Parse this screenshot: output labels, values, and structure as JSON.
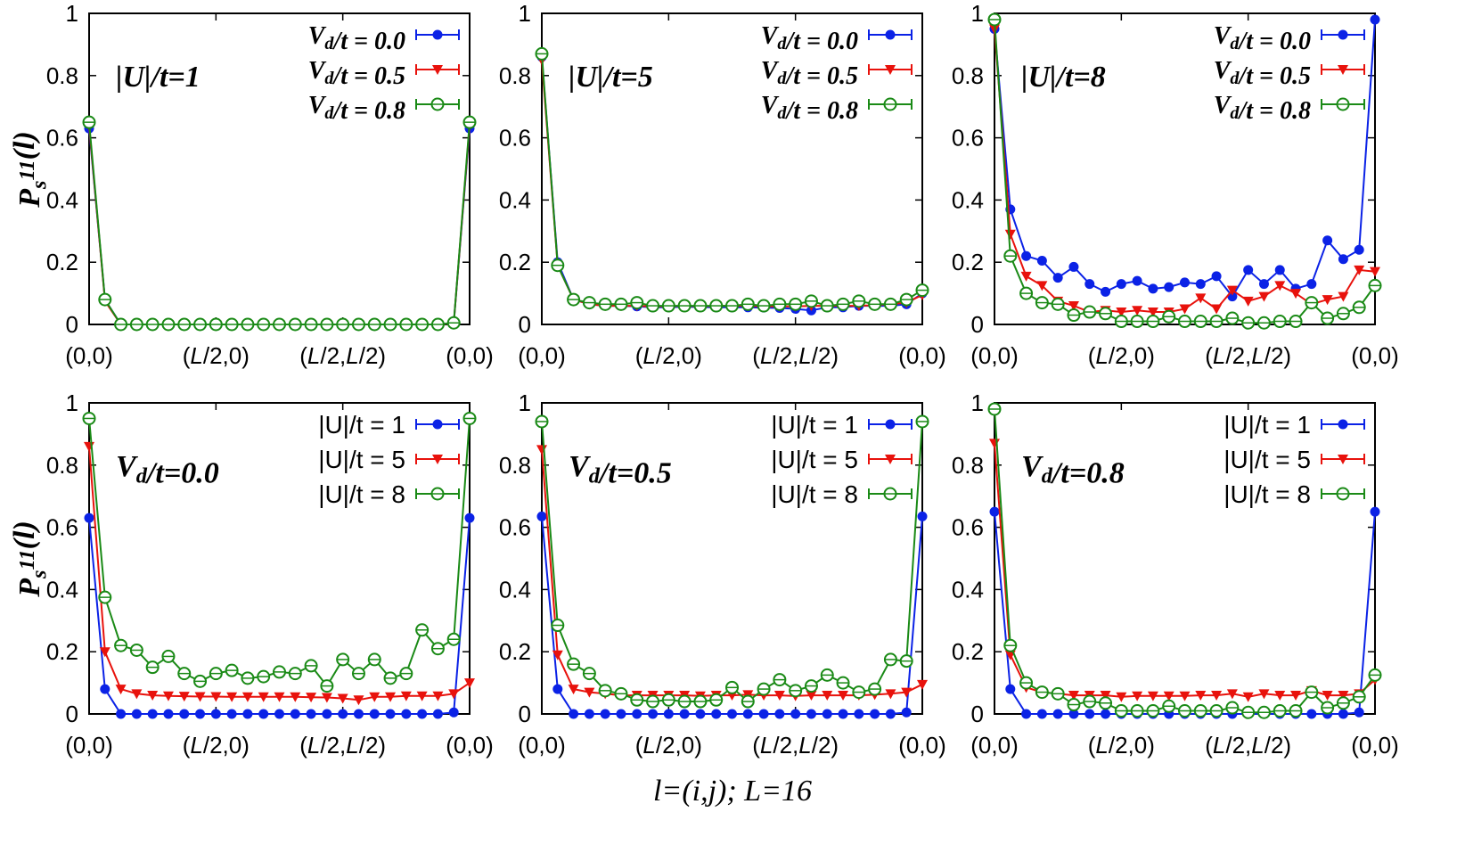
{
  "figure": {
    "xlabel": "l=(i,j); L=16",
    "ylabel": "P_s^11(l)",
    "xtick_labels": [
      "(0,0)",
      "(L/2,0)",
      "(L/2,L/2)",
      "(0,0)"
    ],
    "ytick_labels": [
      "0",
      "0.2",
      "0.4",
      "0.6",
      "0.8",
      "1"
    ]
  },
  "colors": {
    "blue": "#0b22e6",
    "red": "#e8120c",
    "green": "#1a8a16"
  },
  "chart_data": [
    {
      "type": "line",
      "panel_label": "|U|/t=1",
      "ylim": [
        0,
        1
      ],
      "x": [
        0,
        1,
        2,
        3,
        4,
        5,
        6,
        7,
        8,
        9,
        10,
        11,
        12,
        13,
        14,
        15,
        16,
        17,
        18,
        19,
        20,
        21,
        22,
        23,
        24
      ],
      "series": [
        {
          "name": "V_d/t = 0.0",
          "color": "blue",
          "marker": "filled-circle",
          "values": [
            0.63,
            0.08,
            0,
            0,
            0,
            0,
            0,
            0,
            0,
            0,
            0,
            0,
            0,
            0,
            0,
            0,
            0,
            0,
            0,
            0,
            0,
            0,
            0,
            0.005,
            0.63
          ]
        },
        {
          "name": "V_d/t = 0.5",
          "color": "red",
          "marker": "filled-triangle",
          "values": [
            0.64,
            0.075,
            0,
            0,
            0,
            0,
            0,
            0,
            0,
            0,
            0,
            0,
            0,
            0,
            0,
            0,
            0,
            0,
            0,
            0,
            0,
            0,
            0,
            0.004,
            0.64
          ]
        },
        {
          "name": "V_d/t = 0.8",
          "color": "green",
          "marker": "open-circle",
          "values": [
            0.65,
            0.08,
            0,
            0,
            0,
            0,
            0,
            0,
            0,
            0,
            0,
            0,
            0,
            0,
            0,
            0,
            0,
            0,
            0,
            0,
            0,
            0,
            0,
            0.005,
            0.65
          ]
        }
      ]
    },
    {
      "type": "line",
      "panel_label": "|U|/t=5",
      "ylim": [
        0,
        1
      ],
      "x": [
        0,
        1,
        2,
        3,
        4,
        5,
        6,
        7,
        8,
        9,
        10,
        11,
        12,
        13,
        14,
        15,
        16,
        17,
        18,
        19,
        20,
        21,
        22,
        23,
        24
      ],
      "series": [
        {
          "name": "V_d/t = 0.0",
          "color": "blue",
          "marker": "filled-circle",
          "values": [
            0.86,
            0.2,
            0.08,
            0.065,
            0.06,
            0.06,
            0.058,
            0.055,
            0.055,
            0.057,
            0.056,
            0.055,
            0.055,
            0.055,
            0.054,
            0.053,
            0.05,
            0.045,
            0.055,
            0.055,
            0.06,
            0.06,
            0.06,
            0.065,
            0.1
          ]
        },
        {
          "name": "V_d/t = 0.5",
          "color": "red",
          "marker": "filled-triangle",
          "values": [
            0.85,
            0.19,
            0.08,
            0.065,
            0.06,
            0.06,
            0.06,
            0.058,
            0.058,
            0.06,
            0.058,
            0.06,
            0.06,
            0.06,
            0.058,
            0.058,
            0.058,
            0.06,
            0.06,
            0.06,
            0.06,
            0.062,
            0.065,
            0.07,
            0.095
          ]
        },
        {
          "name": "V_d/t = 0.8",
          "color": "green",
          "marker": "open-circle",
          "values": [
            0.87,
            0.19,
            0.08,
            0.07,
            0.065,
            0.065,
            0.07,
            0.06,
            0.06,
            0.06,
            0.06,
            0.06,
            0.06,
            0.065,
            0.06,
            0.065,
            0.065,
            0.075,
            0.06,
            0.065,
            0.075,
            0.065,
            0.065,
            0.08,
            0.11
          ]
        }
      ]
    },
    {
      "type": "line",
      "panel_label": "|U|/t=8",
      "ylim": [
        0,
        1
      ],
      "x": [
        0,
        1,
        2,
        3,
        4,
        5,
        6,
        7,
        8,
        9,
        10,
        11,
        12,
        13,
        14,
        15,
        16,
        17,
        18,
        19,
        20,
        21,
        22,
        23,
        24
      ],
      "series": [
        {
          "name": "V_d/t = 0.0",
          "color": "blue",
          "marker": "filled-circle",
          "values": [
            0.95,
            0.37,
            0.22,
            0.205,
            0.15,
            0.185,
            0.13,
            0.105,
            0.13,
            0.14,
            0.115,
            0.12,
            0.135,
            0.13,
            0.155,
            0.09,
            0.175,
            0.13,
            0.175,
            0.115,
            0.13,
            0.27,
            0.21,
            0.24,
            0.98
          ]
        },
        {
          "name": "V_d/t = 0.5",
          "color": "red",
          "marker": "filled-triangle",
          "values": [
            0.95,
            0.29,
            0.155,
            0.125,
            0.075,
            0.06,
            0.04,
            0.045,
            0.04,
            0.045,
            0.04,
            0.04,
            0.05,
            0.085,
            0.05,
            0.11,
            0.075,
            0.09,
            0.125,
            0.1,
            0.065,
            0.08,
            0.09,
            0.175,
            0.17
          ]
        },
        {
          "name": "V_d/t = 0.8",
          "color": "green",
          "marker": "open-circle",
          "values": [
            0.98,
            0.22,
            0.1,
            0.07,
            0.065,
            0.03,
            0.04,
            0.035,
            0.01,
            0.01,
            0.01,
            0.025,
            0.01,
            0.01,
            0.01,
            0.02,
            0.005,
            0.005,
            0.01,
            0.01,
            0.07,
            0.02,
            0.035,
            0.055,
            0.125
          ]
        }
      ]
    },
    {
      "type": "line",
      "panel_label": "V_d/t=0.0",
      "ylim": [
        0,
        1
      ],
      "x": [
        0,
        1,
        2,
        3,
        4,
        5,
        6,
        7,
        8,
        9,
        10,
        11,
        12,
        13,
        14,
        15,
        16,
        17,
        18,
        19,
        20,
        21,
        22,
        23,
        24
      ],
      "series": [
        {
          "name": "|U|/t = 1",
          "color": "blue",
          "marker": "filled-circle",
          "values": [
            0.63,
            0.08,
            0,
            0,
            0,
            0,
            0,
            0,
            0,
            0,
            0,
            0,
            0,
            0,
            0,
            0,
            0,
            0,
            0,
            0,
            0,
            0,
            0,
            0.005,
            0.63
          ]
        },
        {
          "name": "|U|/t = 5",
          "color": "red",
          "marker": "filled-triangle",
          "values": [
            0.86,
            0.2,
            0.08,
            0.065,
            0.06,
            0.058,
            0.057,
            0.056,
            0.056,
            0.055,
            0.055,
            0.055,
            0.055,
            0.055,
            0.054,
            0.053,
            0.05,
            0.045,
            0.055,
            0.055,
            0.058,
            0.058,
            0.058,
            0.065,
            0.1
          ]
        },
        {
          "name": "|U|/t = 8",
          "color": "green",
          "marker": "open-circle",
          "values": [
            0.95,
            0.375,
            0.22,
            0.205,
            0.15,
            0.185,
            0.13,
            0.105,
            0.13,
            0.14,
            0.115,
            0.12,
            0.135,
            0.13,
            0.155,
            0.09,
            0.175,
            0.13,
            0.175,
            0.115,
            0.13,
            0.27,
            0.21,
            0.24,
            0.95
          ]
        }
      ]
    },
    {
      "type": "line",
      "panel_label": "V_d/t=0.5",
      "ylim": [
        0,
        1
      ],
      "x": [
        0,
        1,
        2,
        3,
        4,
        5,
        6,
        7,
        8,
        9,
        10,
        11,
        12,
        13,
        14,
        15,
        16,
        17,
        18,
        19,
        20,
        21,
        22,
        23,
        24
      ],
      "series": [
        {
          "name": "|U|/t = 1",
          "color": "blue",
          "marker": "filled-circle",
          "values": [
            0.635,
            0.08,
            0,
            0,
            0,
            0,
            0,
            0,
            0,
            0,
            0,
            0,
            0,
            0,
            0,
            0,
            0,
            0,
            0,
            0,
            0,
            0,
            0,
            0.005,
            0.635
          ]
        },
        {
          "name": "|U|/t = 5",
          "color": "red",
          "marker": "filled-triangle",
          "values": [
            0.85,
            0.19,
            0.08,
            0.07,
            0.065,
            0.06,
            0.06,
            0.06,
            0.06,
            0.06,
            0.058,
            0.06,
            0.06,
            0.062,
            0.06,
            0.06,
            0.058,
            0.06,
            0.06,
            0.06,
            0.06,
            0.062,
            0.065,
            0.07,
            0.095
          ]
        },
        {
          "name": "|U|/t = 8",
          "color": "green",
          "marker": "open-circle",
          "values": [
            0.94,
            0.285,
            0.16,
            0.13,
            0.075,
            0.065,
            0.045,
            0.04,
            0.045,
            0.04,
            0.04,
            0.045,
            0.085,
            0.04,
            0.08,
            0.11,
            0.075,
            0.09,
            0.125,
            0.1,
            0.07,
            0.08,
            0.175,
            0.17,
            0.94
          ]
        }
      ]
    },
    {
      "type": "line",
      "panel_label": "V_d/t=0.8",
      "ylim": [
        0,
        1
      ],
      "x": [
        0,
        1,
        2,
        3,
        4,
        5,
        6,
        7,
        8,
        9,
        10,
        11,
        12,
        13,
        14,
        15,
        16,
        17,
        18,
        19,
        20,
        21,
        22,
        23,
        24
      ],
      "series": [
        {
          "name": "|U|/t = 1",
          "color": "blue",
          "marker": "filled-circle",
          "values": [
            0.65,
            0.08,
            0,
            0,
            0,
            0,
            0,
            0,
            0,
            0,
            0,
            0,
            0,
            0,
            0,
            0,
            0,
            0,
            0,
            0,
            0,
            0,
            0,
            0.005,
            0.65
          ]
        },
        {
          "name": "|U|/t = 5",
          "color": "red",
          "marker": "filled-triangle",
          "values": [
            0.87,
            0.19,
            0.085,
            0.07,
            0.065,
            0.06,
            0.06,
            0.06,
            0.055,
            0.058,
            0.058,
            0.058,
            0.058,
            0.06,
            0.06,
            0.065,
            0.055,
            0.065,
            0.06,
            0.06,
            0.075,
            0.06,
            0.06,
            0.065,
            0.11
          ]
        },
        {
          "name": "|U|/t = 8",
          "color": "green",
          "marker": "open-circle",
          "values": [
            0.98,
            0.22,
            0.1,
            0.07,
            0.065,
            0.03,
            0.04,
            0.035,
            0.01,
            0.01,
            0.01,
            0.025,
            0.01,
            0.01,
            0.01,
            0.02,
            0.005,
            0.005,
            0.01,
            0.01,
            0.07,
            0.02,
            0.035,
            0.055,
            0.125
          ]
        }
      ]
    }
  ]
}
